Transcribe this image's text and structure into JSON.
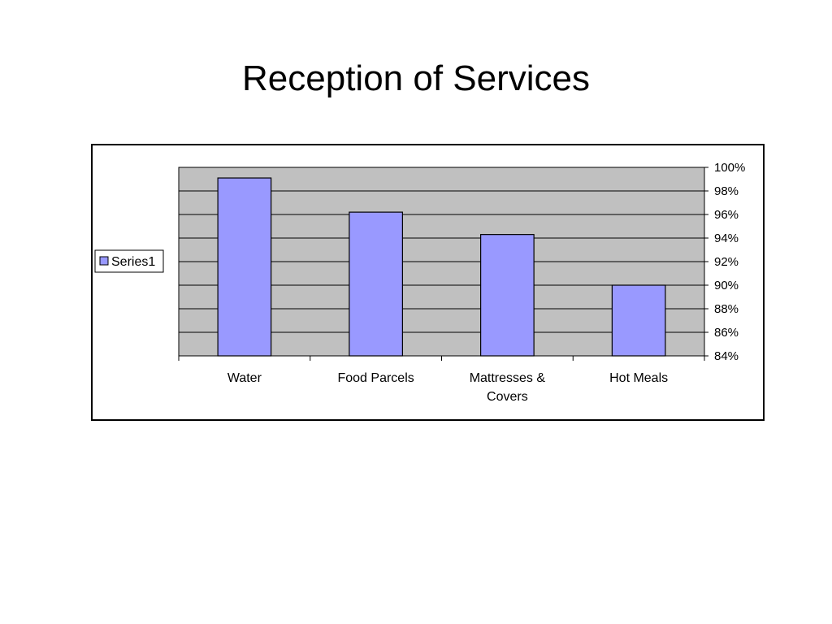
{
  "slide": {
    "title": "Reception of Services"
  },
  "chart_data": {
    "type": "bar",
    "categories": [
      "Water",
      "Food Parcels",
      "Mattresses & Covers",
      "Hot Meals"
    ],
    "category_lines": [
      [
        "Water"
      ],
      [
        "Food Parcels"
      ],
      [
        "Mattresses &",
        "Covers"
      ],
      [
        "Hot Meals"
      ]
    ],
    "series": [
      {
        "name": "Series1",
        "values": [
          0.991,
          0.962,
          0.943,
          0.9
        ]
      }
    ],
    "ylim": [
      0.84,
      1.0
    ],
    "ytick_step": 0.02,
    "yticks": [
      "84%",
      "86%",
      "88%",
      "90%",
      "92%",
      "94%",
      "96%",
      "98%",
      "100%"
    ],
    "y_axis_side": "right",
    "grid": true,
    "legend": {
      "position": "left",
      "entries": [
        "Series1"
      ]
    },
    "colors": {
      "bar": "#9999ff",
      "plot_bg": "#c0c0c0",
      "grid": "#000000",
      "border": "#000000"
    }
  }
}
